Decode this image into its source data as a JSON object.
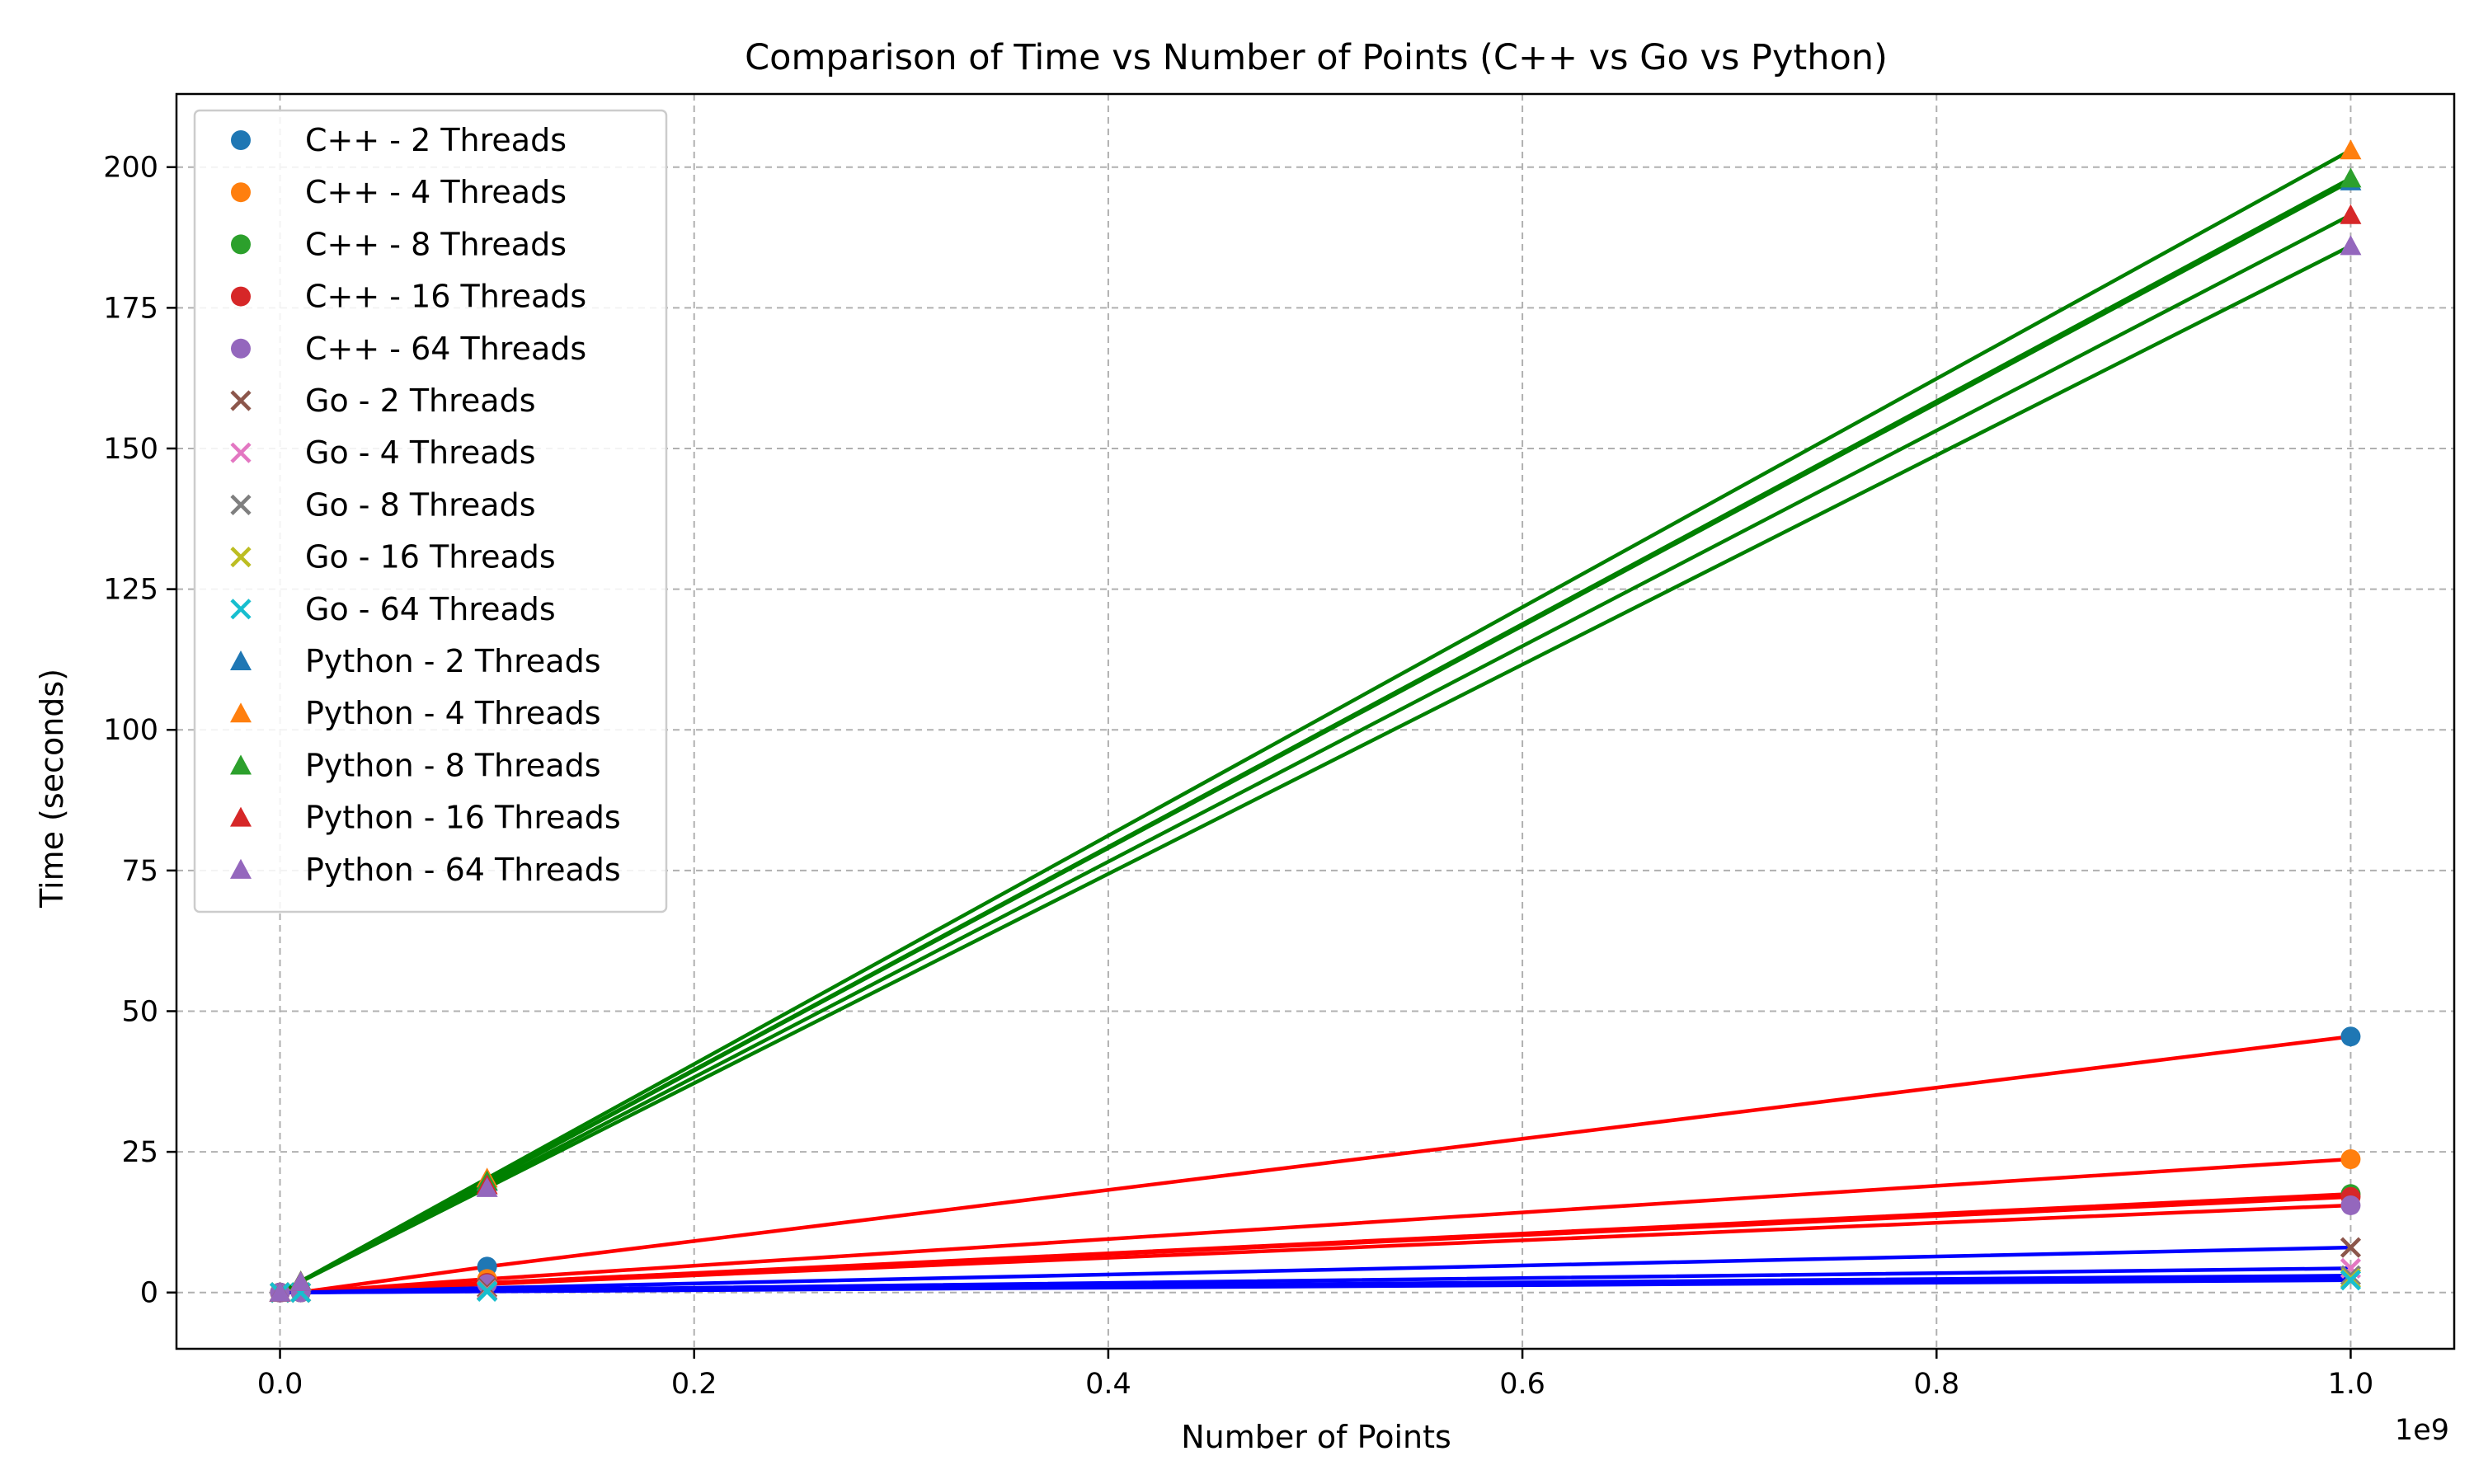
{
  "chart_data": {
    "type": "scatter",
    "title": "Comparison of Time vs Number of Points (C++ vs Go vs Python)",
    "xlabel": "Number of Points",
    "ylabel": "Time (seconds)",
    "x_offset_label": "1e9",
    "xlim": [
      -0.05,
      1.05
    ],
    "ylim": [
      -10,
      213
    ],
    "x_ticks": [
      0.0,
      0.2,
      0.4,
      0.6,
      0.8,
      1.0
    ],
    "x_tick_labels": [
      "0.0",
      "0.2",
      "0.4",
      "0.6",
      "0.8",
      "1.0"
    ],
    "y_ticks": [
      0,
      25,
      50,
      75,
      100,
      125,
      150,
      175,
      200
    ],
    "y_tick_labels": [
      "0",
      "25",
      "50",
      "75",
      "100",
      "125",
      "150",
      "175",
      "200"
    ],
    "grid": true,
    "legend_position": "top-left",
    "x": [
      0.0,
      0.01,
      0.1,
      1.0
    ],
    "series": [
      {
        "name": "C++ - 2 Threads",
        "language": "C++",
        "marker": "circle",
        "color": "#1f77b4",
        "line_color": "#ff0000",
        "values": [
          0.0,
          0.05,
          4.6,
          45.5
        ]
      },
      {
        "name": "C++ - 4 Threads",
        "language": "C++",
        "marker": "circle",
        "color": "#ff7f0e",
        "line_color": "#ff0000",
        "values": [
          0.0,
          0.03,
          2.4,
          23.7
        ]
      },
      {
        "name": "C++ - 8 Threads",
        "language": "C++",
        "marker": "circle",
        "color": "#2ca02c",
        "line_color": "#ff0000",
        "values": [
          0.0,
          0.02,
          1.7,
          17.5
        ]
      },
      {
        "name": "C++ - 16 Threads",
        "language": "C++",
        "marker": "circle",
        "color": "#d62728",
        "line_color": "#ff0000",
        "values": [
          0.0,
          0.02,
          1.7,
          17.0
        ]
      },
      {
        "name": "C++ - 64 Threads",
        "language": "C++",
        "marker": "circle",
        "color": "#9467bd",
        "line_color": "#ff0000",
        "values": [
          0.0,
          0.02,
          1.5,
          15.5
        ]
      },
      {
        "name": "Go - 2 Threads",
        "language": "Go",
        "marker": "x",
        "color": "#8c564b",
        "line_color": "#0000ff",
        "values": [
          0.0,
          0.01,
          0.8,
          8.0
        ]
      },
      {
        "name": "Go - 4 Threads",
        "language": "Go",
        "marker": "x",
        "color": "#e377c2",
        "line_color": "#0000ff",
        "values": [
          0.0,
          0.01,
          0.4,
          4.3
        ]
      },
      {
        "name": "Go - 8 Threads",
        "language": "Go",
        "marker": "x",
        "color": "#7f7f7f",
        "line_color": "#0000ff",
        "values": [
          0.0,
          0.01,
          0.3,
          3.0
        ]
      },
      {
        "name": "Go - 16 Threads",
        "language": "Go",
        "marker": "x",
        "color": "#bcbd22",
        "line_color": "#0000ff",
        "values": [
          0.0,
          0.01,
          0.25,
          2.5
        ]
      },
      {
        "name": "Go - 64 Threads",
        "language": "Go",
        "marker": "x",
        "color": "#17becf",
        "line_color": "#0000ff",
        "values": [
          0.0,
          0.0,
          0.2,
          2.2
        ]
      },
      {
        "name": "Python - 2 Threads",
        "language": "Python",
        "marker": "triangle",
        "color": "#1f77b4",
        "line_color": "#008000",
        "values": [
          0.0,
          2.0,
          19.7,
          197.5
        ]
      },
      {
        "name": "Python - 4 Threads",
        "language": "Python",
        "marker": "triangle",
        "color": "#ff7f0e",
        "line_color": "#008000",
        "values": [
          0.0,
          2.0,
          20.3,
          203.0
        ]
      },
      {
        "name": "Python - 8 Threads",
        "language": "Python",
        "marker": "triangle",
        "color": "#2ca02c",
        "line_color": "#008000",
        "values": [
          0.0,
          2.0,
          19.8,
          198.0
        ]
      },
      {
        "name": "Python - 16 Threads",
        "language": "Python",
        "marker": "triangle",
        "color": "#d62728",
        "line_color": "#008000",
        "values": [
          0.0,
          1.9,
          19.1,
          191.5
        ]
      },
      {
        "name": "Python - 64 Threads",
        "language": "Python",
        "marker": "triangle",
        "color": "#9467bd",
        "line_color": "#008000",
        "values": [
          0.0,
          1.9,
          18.6,
          186.0
        ]
      }
    ]
  }
}
